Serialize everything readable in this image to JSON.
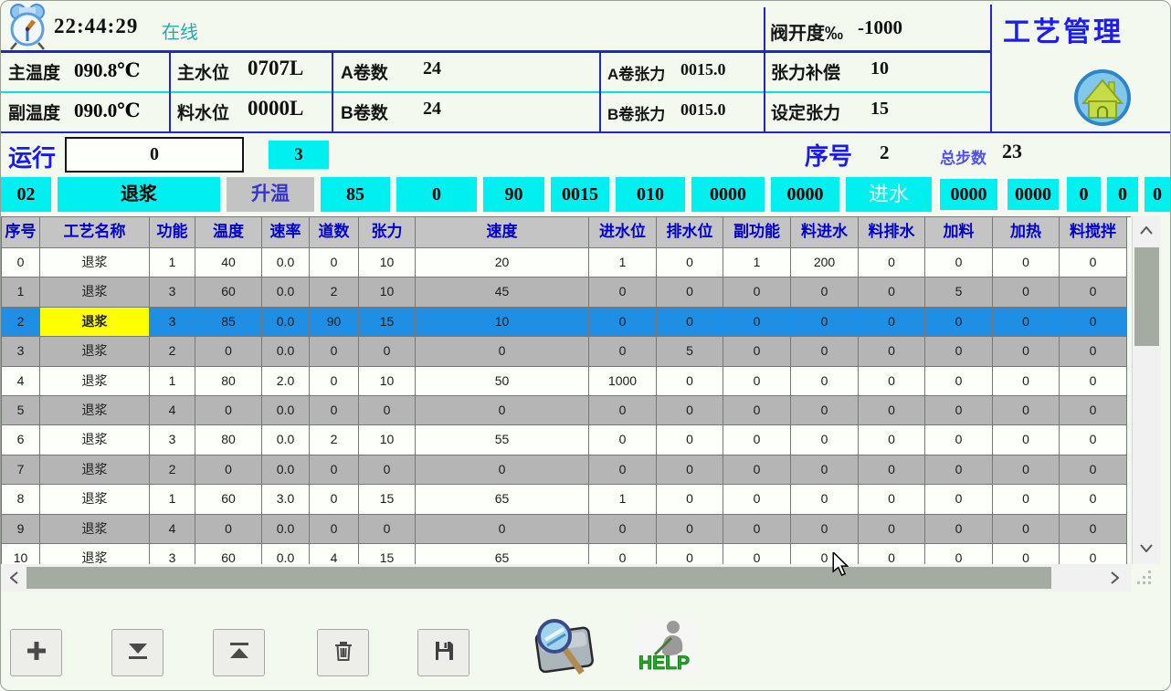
{
  "window": {
    "app_title": "工艺管理"
  },
  "status_bar": {
    "time": "22:44:29",
    "online_label": "在线",
    "valve_label": "阀开度‰",
    "valve_value": "-1000"
  },
  "metrics": {
    "main_temp_label": "主温度",
    "main_temp_value": "090.8℃",
    "aux_temp_label": "副温度",
    "aux_temp_value": "090.0℃",
    "main_level_label": "主水位",
    "main_level_value": "0707L",
    "material_level_label": "料水位",
    "material_level_value": "0000L",
    "roll_a_label": "A卷数",
    "roll_a_value": "24",
    "roll_b_label": "B卷数",
    "roll_b_value": "24",
    "tension_a_label": "A卷张力",
    "tension_a_value": "0015.0",
    "tension_b_label": "B卷张力",
    "tension_b_value": "0015.0",
    "tension_comp_label": "张力补偿",
    "tension_comp_value": "10",
    "tension_set_label": "设定张力",
    "tension_set_value": "15"
  },
  "run_bar": {
    "run_label": "运行",
    "run_value": "0",
    "aux_value": "3",
    "seq_label": "序号",
    "seq_value": "2",
    "total_steps_label": "总步数",
    "total_steps_value": "23"
  },
  "step_strip": {
    "cells": [
      {
        "text": "02",
        "variant": "cyan"
      },
      {
        "text": "退浆",
        "variant": "cyan"
      },
      {
        "text": "升温",
        "variant": "gray"
      },
      {
        "text": "85",
        "variant": "cyan"
      },
      {
        "text": "0",
        "variant": "cyan"
      },
      {
        "text": "90",
        "variant": "cyan"
      },
      {
        "text": "0015",
        "variant": "cyan"
      },
      {
        "text": "010",
        "variant": "cyan"
      },
      {
        "text": "0000",
        "variant": "cyan"
      },
      {
        "text": "0000",
        "variant": "cyan"
      },
      {
        "text": "进水",
        "variant": "cyan-white"
      },
      {
        "text": "0000",
        "variant": "cyan-boxed"
      },
      {
        "text": "0000",
        "variant": "cyan-boxed"
      },
      {
        "text": "0",
        "variant": "cyan"
      },
      {
        "text": "0",
        "variant": "cyan"
      },
      {
        "text": "0",
        "variant": "cyan"
      }
    ]
  },
  "table": {
    "headers": [
      "序号",
      "工艺名称",
      "功能",
      "温度",
      "速率",
      "道数",
      "张力",
      "速度",
      "进水位",
      "排水位",
      "副功能",
      "料进水",
      "料排水",
      "加料",
      "加热",
      "料搅拌"
    ],
    "selected_row_index": 2,
    "rows": [
      {
        "variant": "even",
        "cells": [
          "0",
          "退浆",
          "1",
          "40",
          "0.0",
          "0",
          "10",
          "20",
          "1",
          "0",
          "1",
          "200",
          "0",
          "0",
          "0",
          "0"
        ]
      },
      {
        "variant": "odd",
        "cells": [
          "1",
          "退浆",
          "3",
          "60",
          "0.0",
          "2",
          "10",
          "45",
          "0",
          "0",
          "0",
          "0",
          "0",
          "5",
          "0",
          "0"
        ]
      },
      {
        "variant": "selected",
        "cells": [
          "2",
          "退浆",
          "3",
          "85",
          "0.0",
          "90",
          "15",
          "10",
          "0",
          "0",
          "0",
          "0",
          "0",
          "0",
          "0",
          "0"
        ]
      },
      {
        "variant": "odd",
        "cells": [
          "3",
          "退浆",
          "2",
          "0",
          "0.0",
          "0",
          "0",
          "0",
          "0",
          "5",
          "0",
          "0",
          "0",
          "0",
          "0",
          "0"
        ]
      },
      {
        "variant": "even",
        "cells": [
          "4",
          "退浆",
          "1",
          "80",
          "2.0",
          "0",
          "10",
          "50",
          "1000",
          "0",
          "0",
          "0",
          "0",
          "0",
          "0",
          "0"
        ]
      },
      {
        "variant": "odd",
        "cells": [
          "5",
          "退浆",
          "4",
          "0",
          "0.0",
          "0",
          "0",
          "0",
          "0",
          "0",
          "0",
          "0",
          "0",
          "0",
          "0",
          "0"
        ]
      },
      {
        "variant": "even",
        "cells": [
          "6",
          "退浆",
          "3",
          "80",
          "0.0",
          "2",
          "10",
          "55",
          "0",
          "0",
          "0",
          "0",
          "0",
          "0",
          "0",
          "0"
        ]
      },
      {
        "variant": "odd",
        "cells": [
          "7",
          "退浆",
          "2",
          "0",
          "0.0",
          "0",
          "0",
          "0",
          "0",
          "0",
          "0",
          "0",
          "0",
          "0",
          "0",
          "0"
        ]
      },
      {
        "variant": "even",
        "cells": [
          "8",
          "退浆",
          "1",
          "60",
          "3.0",
          "0",
          "15",
          "65",
          "1",
          "0",
          "0",
          "0",
          "0",
          "0",
          "0",
          "0"
        ]
      },
      {
        "variant": "odd",
        "cells": [
          "9",
          "退浆",
          "4",
          "0",
          "0.0",
          "0",
          "0",
          "0",
          "0",
          "0",
          "0",
          "0",
          "0",
          "0",
          "0",
          "0"
        ]
      },
      {
        "variant": "even",
        "cells": [
          "10",
          "退浆",
          "3",
          "60",
          "0.0",
          "4",
          "15",
          "65",
          "0",
          "0",
          "0",
          "0",
          "0",
          "0",
          "0",
          "0"
        ]
      }
    ]
  },
  "toolbar": {
    "buttons": [
      {
        "name": "add-step",
        "icon": "plus-icon"
      },
      {
        "name": "insert-step-below",
        "icon": "insert-down-icon"
      },
      {
        "name": "insert-step-above",
        "icon": "insert-up-icon"
      },
      {
        "name": "delete-step",
        "icon": "trash-icon"
      },
      {
        "name": "save-recipe",
        "icon": "floppy-icon"
      }
    ],
    "preview_icon": "magnifier-document-icon",
    "help_icon_text": "HELP"
  },
  "icons": {
    "top_left": "alarm-clock-icon",
    "top_right": "home-icon",
    "pointer": "mouse-cursor"
  },
  "colors": {
    "cyan_cell": "#00efef",
    "selected_row": "#1e8fe5",
    "highlight_cell": "#ffff00",
    "header_text_blue": "#0000cc",
    "title_blue": "#1d1dee",
    "row_gray": "#b5b5b5",
    "border_blue": "#2424cc",
    "divider_cyan": "#00e0e0"
  }
}
